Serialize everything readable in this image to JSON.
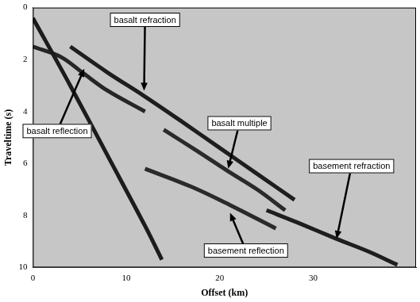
{
  "chart_data": {
    "type": "line",
    "x_label": "Offset (km)",
    "y_label": "Traveltime (s)",
    "xlim": [
      0,
      41
    ],
    "xticks": [
      0,
      10,
      20,
      30
    ],
    "ylim": [
      0,
      10
    ],
    "yticks": [
      0,
      2,
      4,
      6,
      8,
      10
    ],
    "grid": false,
    "marker": "none",
    "line_style": "solid",
    "series": [
      {
        "color": "#1c1c1c",
        "x": [
          0,
          4,
          8,
          12,
          13.8
        ],
        "values": [
          0.4,
          3.0,
          5.7,
          8.4,
          9.7
        ]
      },
      {
        "color": "#262626",
        "x": [
          0,
          3,
          5.3,
          8,
          12
        ],
        "values": [
          1.5,
          1.9,
          2.5,
          3.2,
          4.0
        ]
      },
      {
        "color": "#1e1e1e",
        "x": [
          4,
          8,
          11.9,
          16,
          20,
          24,
          28
        ],
        "values": [
          1.5,
          2.5,
          3.4,
          4.4,
          5.4,
          6.4,
          7.4
        ]
      },
      {
        "color": "#2a2a2a",
        "x": [
          14,
          17.5,
          20.9,
          24,
          27
        ],
        "values": [
          4.7,
          5.5,
          6.3,
          7.0,
          7.8
        ]
      },
      {
        "color": "#2a2a2a",
        "x": [
          12,
          17,
          21.1,
          26
        ],
        "values": [
          6.2,
          6.9,
          7.6,
          8.5
        ]
      },
      {
        "color": "#1e1e1e",
        "x": [
          25,
          28.5,
          32.5,
          36,
          39
        ],
        "values": [
          7.8,
          8.3,
          8.9,
          9.4,
          9.9
        ]
      }
    ],
    "annotations": [
      {
        "text": "basalt refraction",
        "x": 12.0,
        "y": 0.47,
        "arrow_x": 11.9,
        "arrow_y": 3.2
      },
      {
        "text": "basalt reflection",
        "x": 2.6,
        "y": 4.75,
        "arrow_x": 5.5,
        "arrow_y": 2.35
      },
      {
        "text": "basalt multiple",
        "x": 22.1,
        "y": 4.45,
        "arrow_x": 20.9,
        "arrow_y": 6.2
      },
      {
        "text": "basement refraction",
        "x": 34.1,
        "y": 6.1,
        "arrow_x": 32.5,
        "arrow_y": 8.9
      },
      {
        "text": "basement reflection",
        "x": 22.8,
        "y": 9.35,
        "arrow_x": 21.1,
        "arrow_y": 7.9
      }
    ]
  }
}
